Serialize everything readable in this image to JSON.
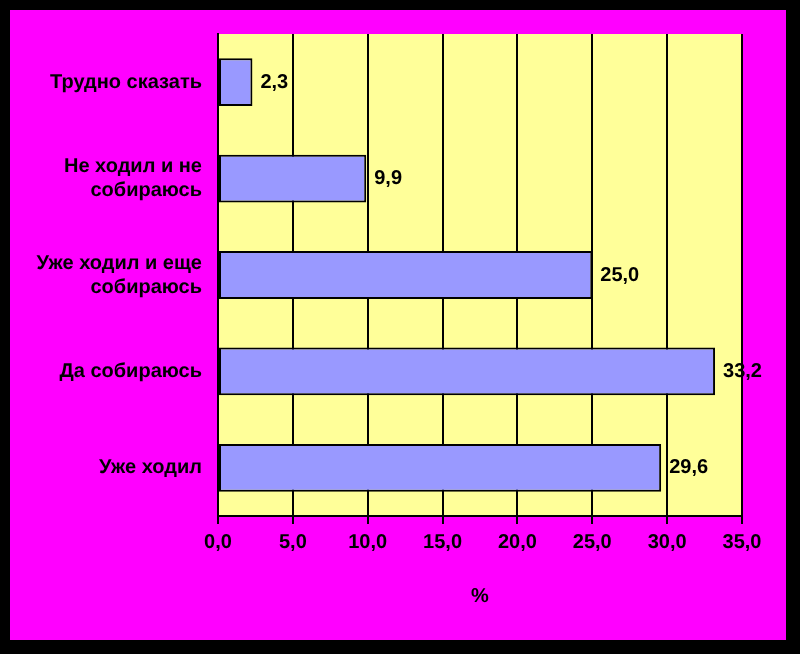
{
  "chart_data": {
    "type": "bar",
    "orientation": "horizontal",
    "xlabel": "%",
    "categories": [
      "Трудно сказать",
      "Не ходил и не собираюсь",
      "Уже ходил и еще собираюсь",
      "Да собираюсь",
      "Уже ходил"
    ],
    "values": [
      2.3,
      9.9,
      25.0,
      33.2,
      29.6
    ],
    "value_labels": [
      "2,3",
      "9,9",
      "25,0",
      "33,2",
      "29,6"
    ],
    "color": "#9999ff",
    "xlim": [
      0,
      35
    ],
    "xticks": [
      {
        "value": 0,
        "label": "0,0"
      },
      {
        "value": 5,
        "label": "5,0"
      },
      {
        "value": 10,
        "label": "10,0"
      },
      {
        "value": 15,
        "label": "15,0"
      },
      {
        "value": 20,
        "label": "20,0"
      },
      {
        "value": 25,
        "label": "25,0"
      },
      {
        "value": 30,
        "label": "30,0"
      },
      {
        "value": 35,
        "label": "35,0"
      }
    ],
    "grid": "x"
  }
}
